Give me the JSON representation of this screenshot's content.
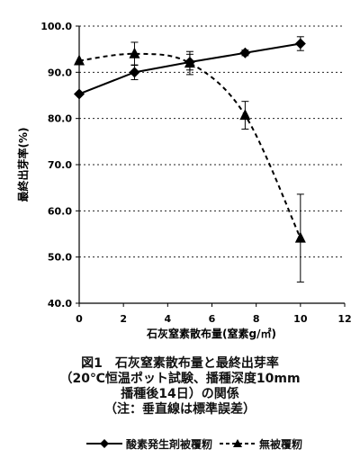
{
  "chart_data": {
    "type": "line",
    "xlabel": "石灰窒素散布量(窒素g/㎡)",
    "ylabel": "最終出芽率(%)",
    "xlim": [
      0,
      12
    ],
    "ylim": [
      40,
      100
    ],
    "x_ticks": [
      "0",
      "2",
      "4",
      "6",
      "8",
      "10",
      "12"
    ],
    "y_ticks": [
      "40.0",
      "50.0",
      "60.0",
      "70.0",
      "80.0",
      "90.0",
      "100.0"
    ],
    "grid": "horizontal dotted",
    "series": [
      {
        "name": "酸素発生剤被覆籾",
        "line": "solid",
        "marker": "diamond",
        "x": [
          0,
          2.5,
          5,
          7.5,
          10
        ],
        "y": [
          85.3,
          90.0,
          92.2,
          94.2,
          96.2
        ],
        "err": [
          0,
          1.6,
          1.7,
          0.6,
          1.5
        ]
      },
      {
        "name": "無被覆籾",
        "line": "dashed",
        "marker": "triangle",
        "x": [
          0,
          2.5,
          5,
          7.5,
          10
        ],
        "y": [
          92.5,
          94.0,
          92.0,
          80.7,
          54.1
        ],
        "err": [
          0,
          2.5,
          2.5,
          3.0,
          9.5
        ]
      }
    ]
  },
  "caption": {
    "line1": "図1　石灰窒素散布量と最終出芽率",
    "line2": "（20℃恒温ポット試験、播種深度10mm",
    "line3": "播種後14日）の関係",
    "line4": "（注：垂直線は標準誤差）"
  },
  "legend": {
    "coated": "酸素発生剤被覆籾",
    "uncoated": "無被覆籾"
  }
}
